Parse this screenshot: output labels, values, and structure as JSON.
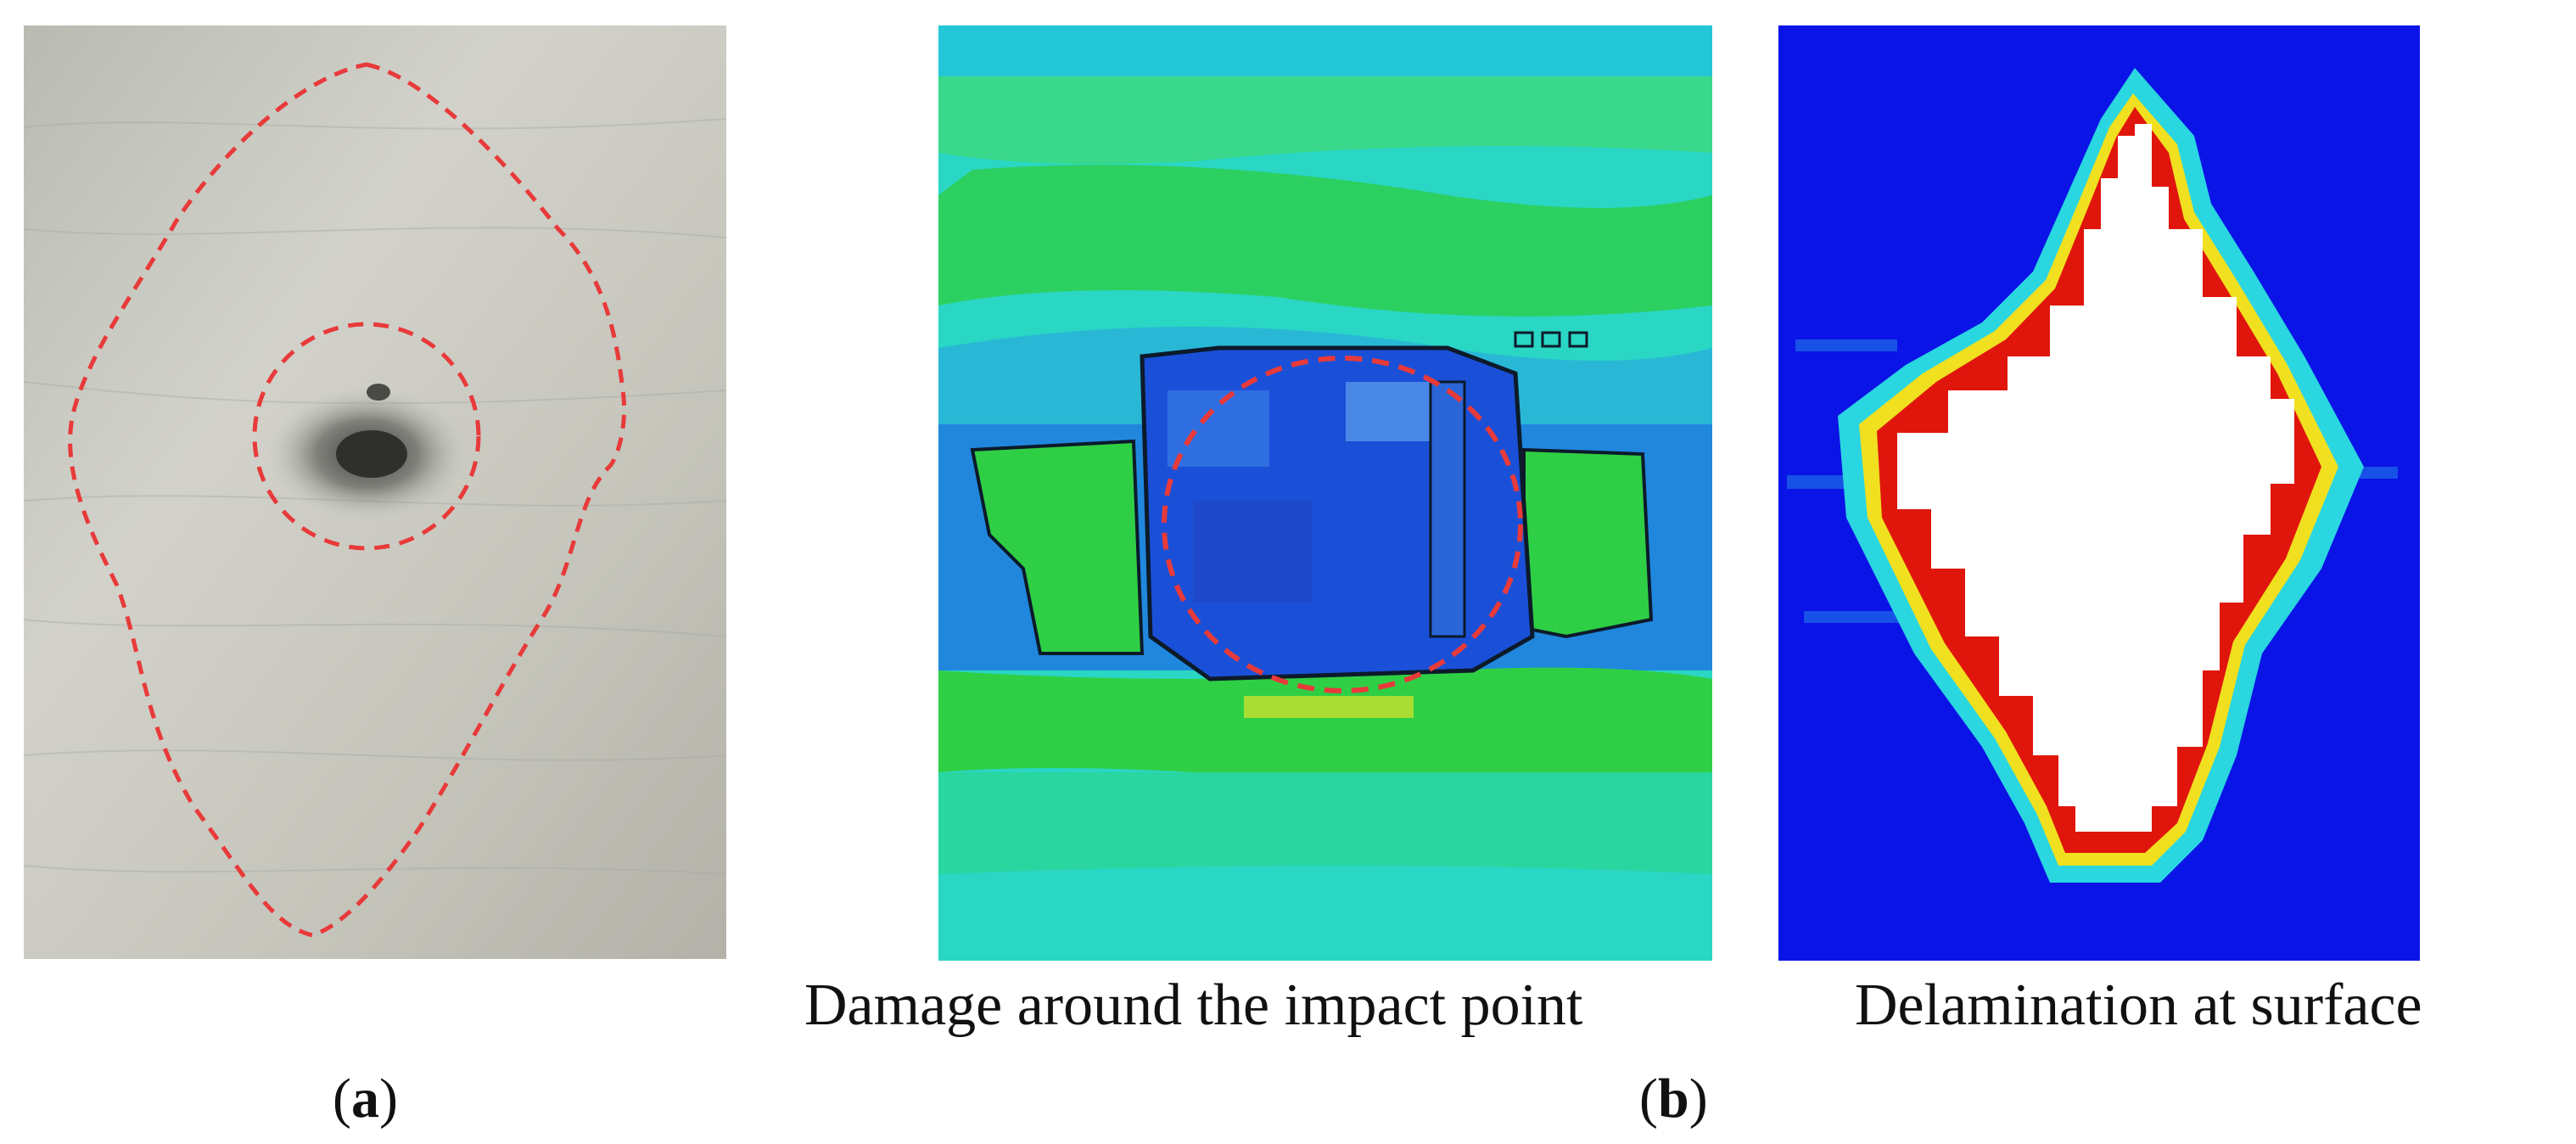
{
  "figure": {
    "panels": [
      {
        "id": "a",
        "label_open": "(",
        "label_letter": "a",
        "label_close": ")",
        "content": "photo-of-impacted-plywood-specimen"
      },
      {
        "id": "b",
        "label_open": "(",
        "label_letter": "b",
        "label_close": ")",
        "subcaptions": [
          "Damage around the impact point",
          "Delamination at surface"
        ]
      }
    ]
  },
  "colors": {
    "dashed_outline": "#e83a3a",
    "wood_base": "#c9c9c0",
    "sim_background": "#2ad6c4",
    "sim_green": "#2fcf45",
    "sim_blue": "#1f5ae0",
    "delam_background": "#0a14e6",
    "delam_core": "#ffffff",
    "delam_edge_red": "#e0160c",
    "delam_edge_yellow": "#f0e020"
  }
}
